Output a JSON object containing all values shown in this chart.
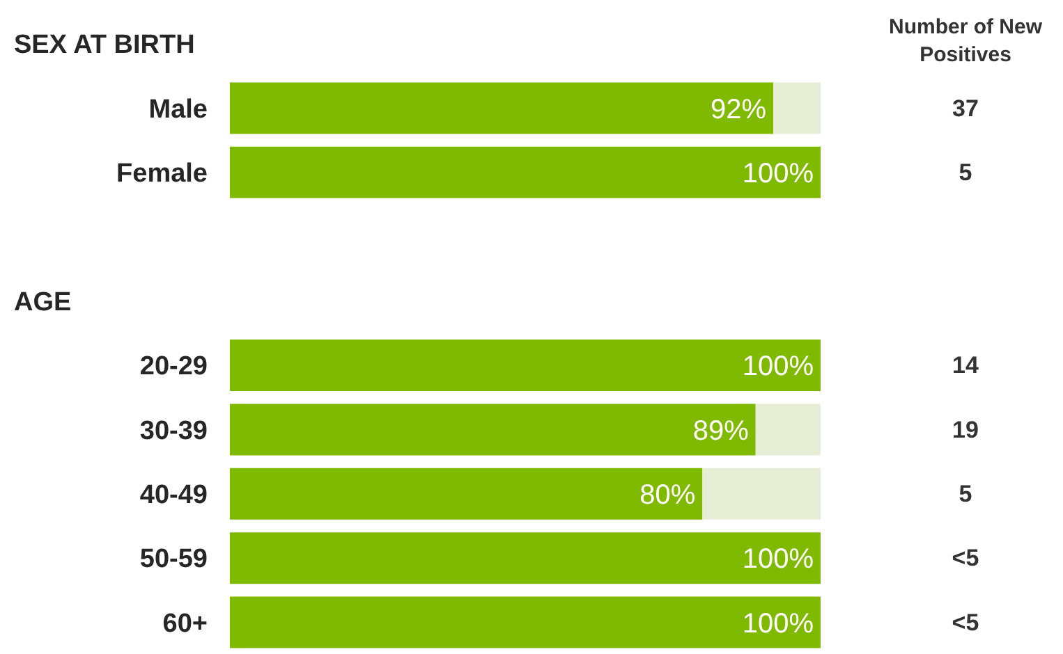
{
  "chart_data": {
    "type": "bar",
    "orientation": "horizontal",
    "stacked": true,
    "tick_labels": "y",
    "xlim": [
      0,
      100
    ],
    "categories": [
      null,
      "Male",
      "Female",
      null,
      null,
      "20-29",
      "30-39",
      "40-49",
      "50-59",
      "60+"
    ],
    "series": [
      {
        "color": "#7fba00",
        "values": [
          null,
          92,
          100,
          null,
          null,
          100,
          89,
          80,
          100,
          100
        ],
        "value_labels": [
          null,
          "92%",
          "100%",
          null,
          null,
          "100%",
          "89%",
          "80%",
          "100%",
          "100%"
        ]
      },
      {
        "color": "#e6efd6",
        "values": [
          null,
          8,
          0,
          null,
          null,
          0,
          11,
          20,
          0,
          0
        ]
      }
    ],
    "annotations": [
      "SEX AT BIRTH",
      "Number of New Positives",
      "37",
      "5",
      "AGE",
      "14",
      "19",
      "5",
      "<5",
      "<5"
    ]
  }
}
